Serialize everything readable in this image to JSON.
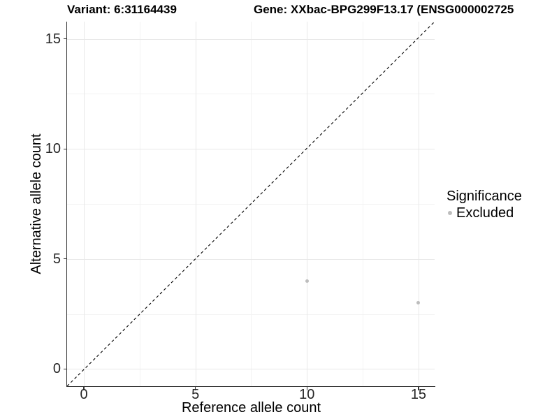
{
  "titles": {
    "left": "Variant: 6:31164439",
    "right": "Gene: XXbac-BPG299F13.17 (ENSG000002725"
  },
  "chart_data": {
    "type": "scatter",
    "title": "Variant: 6:31164439 / Gene: XXbac-BPG299F13.17 (ENSG000002725",
    "xlabel": "Reference allele count",
    "ylabel": "Alternative allele count",
    "x_ticks": [
      0,
      5,
      10,
      15
    ],
    "y_ticks": [
      0,
      5,
      10,
      15
    ],
    "x_minor_gridlines": [
      2.5,
      7.5,
      12.5
    ],
    "y_minor_gridlines": [
      2.5,
      7.5,
      12.5
    ],
    "xlim": [
      -0.75,
      15.75
    ],
    "ylim": [
      -0.79,
      15.79
    ],
    "grid": true,
    "points": [
      {
        "x": 10,
        "y": 4,
        "series": "Excluded"
      },
      {
        "x": 15,
        "y": 3,
        "series": "Excluded"
      }
    ],
    "reference_line": {
      "kind": "identity",
      "style": "dashed",
      "color": "#000000"
    },
    "legend": {
      "title": "Significance",
      "position": "right",
      "items": [
        {
          "label": "Excluded",
          "color": "#bdbdbd"
        }
      ]
    },
    "colors": {
      "point": "#bdbdbd",
      "grid_major": "#e8e8e8",
      "grid_minor": "#f3f3f3",
      "axis_line": "#333333",
      "text": "#000000"
    }
  }
}
